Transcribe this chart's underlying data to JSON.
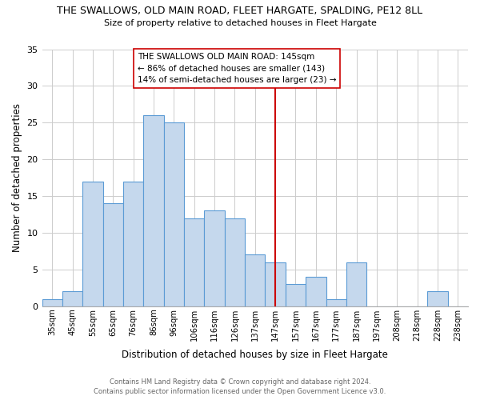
{
  "title": "THE SWALLOWS, OLD MAIN ROAD, FLEET HARGATE, SPALDING, PE12 8LL",
  "subtitle": "Size of property relative to detached houses in Fleet Hargate",
  "xlabel": "Distribution of detached houses by size in Fleet Hargate",
  "ylabel": "Number of detached properties",
  "bar_labels": [
    "35sqm",
    "45sqm",
    "55sqm",
    "65sqm",
    "76sqm",
    "86sqm",
    "96sqm",
    "106sqm",
    "116sqm",
    "126sqm",
    "137sqm",
    "147sqm",
    "157sqm",
    "167sqm",
    "177sqm",
    "187sqm",
    "197sqm",
    "208sqm",
    "218sqm",
    "228sqm",
    "238sqm"
  ],
  "bar_values": [
    1,
    2,
    17,
    14,
    17,
    26,
    25,
    12,
    13,
    12,
    7,
    6,
    3,
    4,
    1,
    6,
    0,
    0,
    0,
    2,
    0
  ],
  "bar_color": "#c5d8ed",
  "bar_edge_color": "#5b9bd5",
  "ylim": [
    0,
    35
  ],
  "yticks": [
    0,
    5,
    10,
    15,
    20,
    25,
    30,
    35
  ],
  "vline_color": "#cc0000",
  "annotation_title": "THE SWALLOWS OLD MAIN ROAD: 145sqm",
  "annotation_line1": "← 86% of detached houses are smaller (143)",
  "annotation_line2": "14% of semi-detached houses are larger (23) →",
  "footer1": "Contains HM Land Registry data © Crown copyright and database right 2024.",
  "footer2": "Contains public sector information licensed under the Open Government Licence v3.0.",
  "background_color": "#ffffff",
  "grid_color": "#cccccc"
}
